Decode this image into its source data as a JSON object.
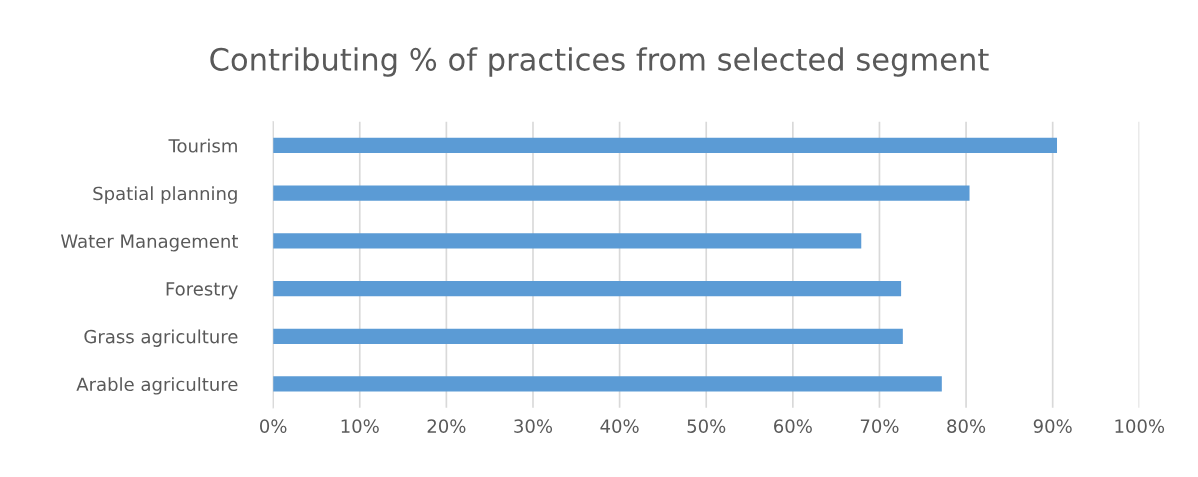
{
  "chart_data": {
    "type": "bar",
    "orientation": "horizontal",
    "title": "Contributing % of practices from selected segment",
    "categories": [
      "Tourism",
      "Spatial planning",
      "Water Management",
      "Forestry",
      "Grass agriculture",
      "Arable agriculture"
    ],
    "values": [
      90.5,
      80.4,
      67.9,
      72.5,
      72.7,
      77.2
    ],
    "color": "#5b9bd5",
    "xlim": [
      0,
      100
    ],
    "xticks": [
      {
        "value": 0,
        "label": "0%"
      },
      {
        "value": 10,
        "label": "10%"
      },
      {
        "value": 20,
        "label": "20%"
      },
      {
        "value": 30,
        "label": "30%"
      },
      {
        "value": 40,
        "label": "40%"
      },
      {
        "value": 50,
        "label": "50%"
      },
      {
        "value": 60,
        "label": "60%"
      },
      {
        "value": 70,
        "label": "70%"
      },
      {
        "value": 80,
        "label": "80%"
      },
      {
        "value": 90,
        "label": "90%"
      },
      {
        "value": 100,
        "label": "100%"
      }
    ],
    "grid": "x",
    "legend": false
  }
}
